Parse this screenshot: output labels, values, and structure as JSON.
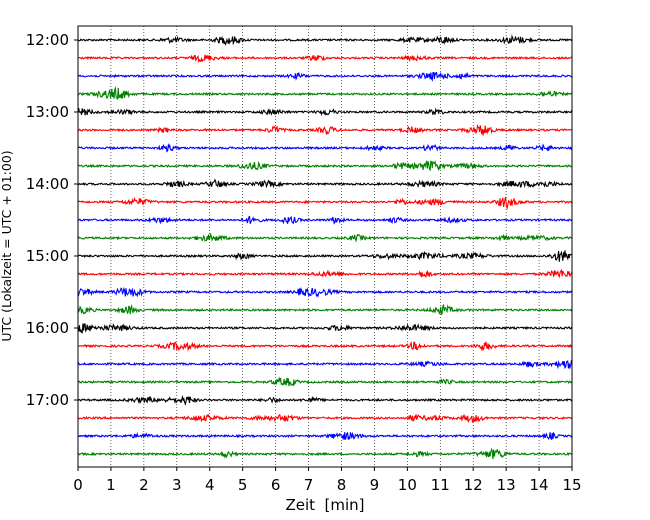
{
  "chart_data": {
    "type": "line",
    "title": "",
    "xlabel": "Zeit  [min]",
    "ylabel": "UTC (Lokalzeit = UTC + 01:00)",
    "xlim": [
      0,
      15
    ],
    "x_ticks": [
      "0",
      "1",
      "2",
      "3",
      "4",
      "5",
      "6",
      "7",
      "8",
      "9",
      "10",
      "11",
      "12",
      "13",
      "14",
      "15"
    ],
    "y_tick_labels": [
      "12:00",
      "13:00",
      "14:00",
      "15:00",
      "16:00",
      "17:00"
    ],
    "grid": "vertical dotted lines at each minute",
    "trace_interval_minutes": 15,
    "color_cycle": [
      "#000000",
      "#ff0000",
      "#0000ff",
      "#008000"
    ],
    "series": [
      {
        "start": "12:00",
        "color": "#000000"
      },
      {
        "start": "12:15",
        "color": "#ff0000"
      },
      {
        "start": "12:30",
        "color": "#0000ff"
      },
      {
        "start": "12:45",
        "color": "#008000"
      },
      {
        "start": "13:00",
        "color": "#000000"
      },
      {
        "start": "13:15",
        "color": "#ff0000"
      },
      {
        "start": "13:30",
        "color": "#0000ff"
      },
      {
        "start": "13:45",
        "color": "#008000"
      },
      {
        "start": "14:00",
        "color": "#000000"
      },
      {
        "start": "14:15",
        "color": "#ff0000"
      },
      {
        "start": "14:30",
        "color": "#0000ff"
      },
      {
        "start": "14:45",
        "color": "#008000"
      },
      {
        "start": "15:00",
        "color": "#000000"
      },
      {
        "start": "15:15",
        "color": "#ff0000"
      },
      {
        "start": "15:30",
        "color": "#0000ff"
      },
      {
        "start": "15:45",
        "color": "#008000"
      },
      {
        "start": "16:00",
        "color": "#000000"
      },
      {
        "start": "16:15",
        "color": "#ff0000"
      },
      {
        "start": "16:30",
        "color": "#0000ff"
      },
      {
        "start": "16:45",
        "color": "#008000"
      },
      {
        "start": "17:00",
        "color": "#000000"
      },
      {
        "start": "17:15",
        "color": "#ff0000"
      },
      {
        "start": "17:30",
        "color": "#0000ff"
      },
      {
        "start": "17:45",
        "color": "#008000"
      }
    ]
  }
}
